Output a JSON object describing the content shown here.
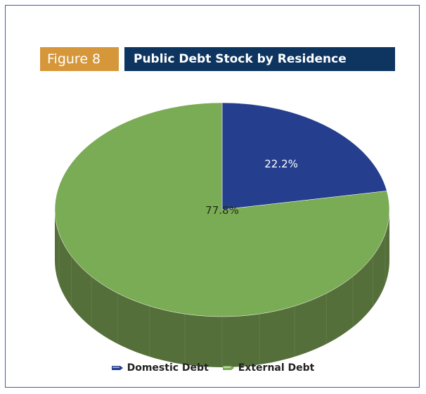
{
  "figure": {
    "tag": "Figure  8",
    "title": "Public Debt Stock by Residence",
    "tag_color": "#d6973a",
    "title_color": "#0e3560"
  },
  "chart_data": {
    "type": "pie",
    "style": "3d",
    "title": "Public Debt Stock by Residence",
    "series": [
      {
        "name": "Domestic Debt",
        "value": 22.2,
        "label": "22.2%",
        "color": "#253e8e"
      },
      {
        "name": "External Debt",
        "value": 77.8,
        "label": "77.8%",
        "color": "#7aab55"
      }
    ],
    "legend_position": "bottom"
  },
  "legend": {
    "domestic_label": "Domestic Debt",
    "external_label": "External Debt"
  }
}
